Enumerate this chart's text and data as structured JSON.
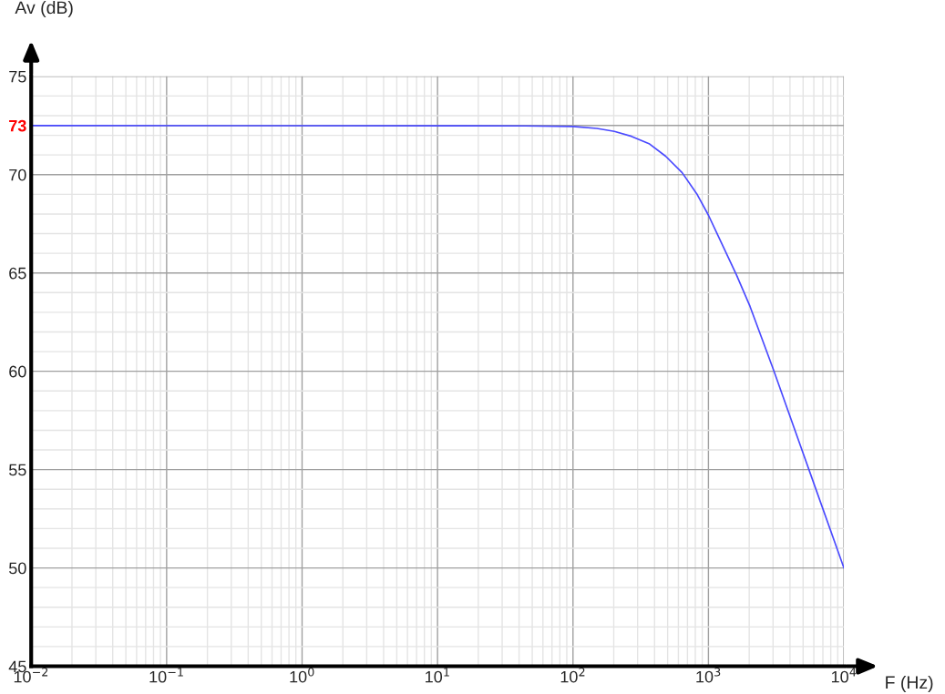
{
  "chart_data": {
    "type": "line",
    "xlabel": "F (Hz)",
    "ylabel": "Av (dB)",
    "log": "x",
    "grid": true,
    "marker": "none",
    "line_style": "solid",
    "xlim": [
      0.01,
      10000
    ],
    "ylim": [
      45,
      75
    ],
    "xticks": [
      {
        "value": 0.01,
        "label": "10$^{−2}$"
      },
      {
        "value": 0.1,
        "label": "10$^{−1}$"
      },
      {
        "value": 1,
        "label": "10$^{0}$"
      },
      {
        "value": 10,
        "label": "10$^{1}$"
      },
      {
        "value": 100,
        "label": "10$^{2}$"
      },
      {
        "value": 1000,
        "label": "10$^{3}$"
      },
      {
        "value": 10000,
        "label": "10$^{4}$"
      }
    ],
    "yticks": [
      45,
      50,
      55,
      60,
      65,
      70,
      {
        "value": 72.5,
        "label": "73"
      },
      75
    ],
    "x": [
      0.01,
      44.5,
      100,
      150,
      202,
      270,
      364,
      483,
      640,
      828,
      1000,
      1611,
      2028,
      3013,
      5520,
      10000
    ],
    "series": [
      {
        "color": "#4a4aff",
        "values": [
          72.5,
          72.48,
          72.45,
          72.35,
          72.2,
          71.95,
          71.58,
          70.94,
          70.1,
          68.98,
          67.94,
          64.9,
          63.3,
          60.1,
          55.0,
          50.0
        ]
      }
    ]
  }
}
